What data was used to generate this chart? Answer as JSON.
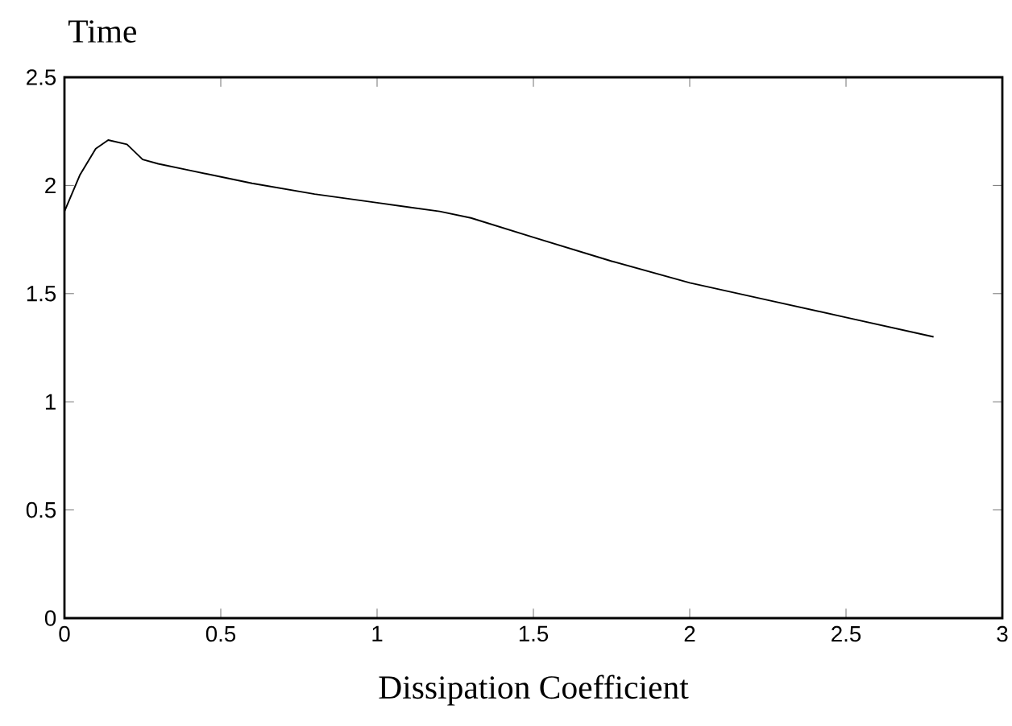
{
  "chart_data": {
    "type": "line",
    "xlabel": "Dissipation Coefficient",
    "ylabel": "Time",
    "x": [
      0,
      0.05,
      0.1,
      0.14,
      0.2,
      0.25,
      0.3,
      0.4,
      0.6,
      0.8,
      1.0,
      1.2,
      1.3,
      1.5,
      1.75,
      2.0,
      2.25,
      2.5,
      2.78
    ],
    "series": [
      {
        "color": "#000000",
        "values": [
          1.88,
          2.05,
          2.17,
          2.21,
          2.19,
          2.12,
          2.1,
          2.07,
          2.01,
          1.96,
          1.92,
          1.88,
          1.85,
          1.76,
          1.65,
          1.55,
          1.47,
          1.39,
          1.3
        ]
      }
    ],
    "xlim": [
      0,
      3
    ],
    "ylim": [
      0,
      2.5
    ],
    "xticks": [
      0,
      0.5,
      1,
      1.5,
      2,
      2.5,
      3
    ],
    "yticks": [
      0,
      0.5,
      1,
      1.5,
      2,
      2.5
    ],
    "grid": false,
    "marker": "none",
    "line_style": "solid"
  }
}
